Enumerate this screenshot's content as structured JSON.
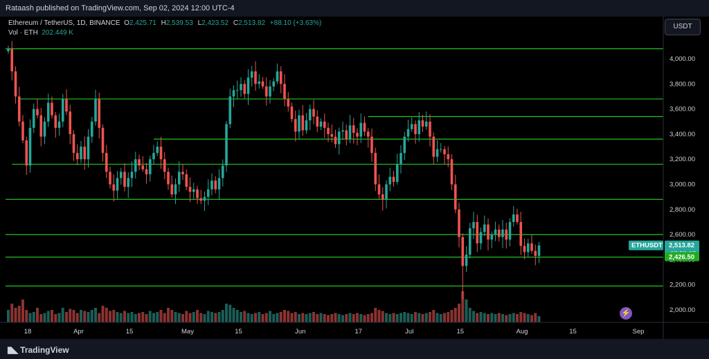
{
  "header": {
    "publish_line": "Rataash published on TradingView.com, Sep 02, 2024 12:00 UTC-4"
  },
  "legend": {
    "title": "Ethereum / TetherUS, 1D, BINANCE",
    "o_key": "O",
    "o_val": "2,425.71",
    "h_key": "H",
    "h_val": "2,539.53",
    "l_key": "L",
    "l_val": "2,423.52",
    "c_key": "C",
    "c_val": "2,513.82",
    "change": "+88.10 (+3.63%)",
    "vol_key": "Vol · ETH",
    "vol_val": "202.449 K"
  },
  "currency_button": "USDT",
  "footer": {
    "logo_text": "TradingView"
  },
  "colors": {
    "up": "#26a69a",
    "down": "#ef5350",
    "hline": "#22c522",
    "bg": "#000000"
  },
  "chart_data": {
    "type": "candlestick",
    "symbol": "ETHUSDT",
    "ylim": [
      1920,
      4150
    ],
    "y_ticks": [
      2000,
      2200,
      2400,
      2600,
      2800,
      3000,
      3200,
      3400,
      3600,
      3800,
      4000
    ],
    "y_tick_labels": [
      "2,000.00",
      "2,200.00",
      "2,400.00",
      "2,600.00",
      "2,800.00",
      "3,000.00",
      "3,200.00",
      "3,400.00",
      "3,600.00",
      "3,800.00",
      "4,000.00"
    ],
    "x_ticks": [
      {
        "label": "18",
        "day": 0
      },
      {
        "label": "Apr",
        "day": 14
      },
      {
        "label": "15",
        "day": 28
      },
      {
        "label": "May",
        "day": 44
      },
      {
        "label": "15",
        "day": 58
      },
      {
        "label": "Jun",
        "day": 75
      },
      {
        "label": "17",
        "day": 91
      },
      {
        "label": "Jul",
        "day": 105
      },
      {
        "label": "15",
        "day": 119
      },
      {
        "label": "Aug",
        "day": 136
      },
      {
        "label": "15",
        "day": 150
      },
      {
        "label": "Sep",
        "day": 168
      }
    ],
    "horizontal_levels": [
      {
        "price": 4080,
        "from_day": -2
      },
      {
        "price": 3680,
        "from_day": 3
      },
      {
        "price": 3540,
        "from_day": 99
      },
      {
        "price": 3360,
        "from_day": 40
      },
      {
        "price": 3160,
        "from_day": 1
      },
      {
        "price": 2880,
        "from_day": -2
      },
      {
        "price": 2600,
        "from_day": -2
      },
      {
        "price": 2420,
        "from_day": -2
      },
      {
        "price": 2190,
        "from_day": -2
      }
    ],
    "last_price_label": "2,513.82",
    "last_price": 2513.82,
    "countdown": "07:59:07",
    "secondary_label": "2,426.50",
    "secondary_price": 2426.5,
    "symbol_tag": "ETHUSDT",
    "closes": [
      4080,
      3900,
      3700,
      3500,
      3350,
      3150,
      3450,
      3600,
      3550,
      3380,
      3500,
      3650,
      3550,
      3450,
      3500,
      3680,
      3580,
      3400,
      3250,
      3200,
      3300,
      3200,
      3380,
      3500,
      3680,
      3450,
      3250,
      3100,
      3000,
      2950,
      3050,
      3100,
      2980,
      3050,
      3100,
      3200,
      3150,
      3120,
      3080,
      3200,
      3250,
      3300,
      3200,
      3100,
      3000,
      2920,
      3000,
      3100,
      3080,
      2980,
      2940,
      2960,
      2890,
      2870,
      2900,
      2960,
      3030,
      2960,
      3050,
      3150,
      3480,
      3700,
      3750,
      3750,
      3800,
      3720,
      3850,
      3900,
      3800,
      3820,
      3780,
      3700,
      3780,
      3820,
      3900,
      3800,
      3680,
      3620,
      3520,
      3420,
      3550,
      3430,
      3510,
      3600,
      3540,
      3460,
      3500,
      3450,
      3400,
      3380,
      3320,
      3420,
      3430,
      3360,
      3470,
      3410,
      3380,
      3490,
      3420,
      3380,
      3250,
      3000,
      2920,
      2880,
      3000,
      3060,
      3020,
      3160,
      3250,
      3380,
      3440,
      3480,
      3400,
      3510,
      3460,
      3500,
      3380,
      3220,
      3280,
      3280,
      3240,
      3200,
      3000,
      2800,
      2580,
      2350,
      2440,
      2650,
      2700,
      2530,
      2620,
      2680,
      2560,
      2600,
      2640,
      2580,
      2640,
      2560,
      2700,
      2760,
      2700,
      2510,
      2460,
      2530,
      2470,
      2430,
      2514
    ],
    "volumes": [
      60,
      90,
      70,
      80,
      110,
      60,
      45,
      50,
      70,
      40,
      45,
      55,
      60,
      40,
      45,
      70,
      50,
      65,
      60,
      45,
      60,
      55,
      50,
      60,
      70,
      45,
      80,
      70,
      55,
      60,
      50,
      45,
      55,
      45,
      50,
      40,
      45,
      50,
      40,
      55,
      45,
      50,
      60,
      45,
      70,
      60,
      50,
      45,
      40,
      55,
      45,
      50,
      60,
      45,
      40,
      55,
      50,
      45,
      50,
      60,
      90,
      85,
      70,
      60,
      50,
      55,
      45,
      40,
      45,
      50,
      40,
      45,
      55,
      40,
      45,
      50,
      60,
      55,
      45,
      50,
      40,
      45,
      40,
      45,
      50,
      40,
      45,
      40,
      35,
      40,
      45,
      40,
      35,
      40,
      45,
      40,
      45,
      40,
      35,
      40,
      45,
      70,
      60,
      55,
      45,
      40,
      45,
      40,
      45,
      50,
      45,
      40,
      50,
      45,
      40,
      45,
      50,
      60,
      45,
      40,
      45,
      50,
      60,
      70,
      90,
      150,
      110,
      70,
      55,
      45,
      50,
      45,
      40,
      45,
      40,
      45,
      40,
      35,
      40,
      45,
      40,
      50,
      45,
      40,
      35,
      45,
      30
    ]
  }
}
